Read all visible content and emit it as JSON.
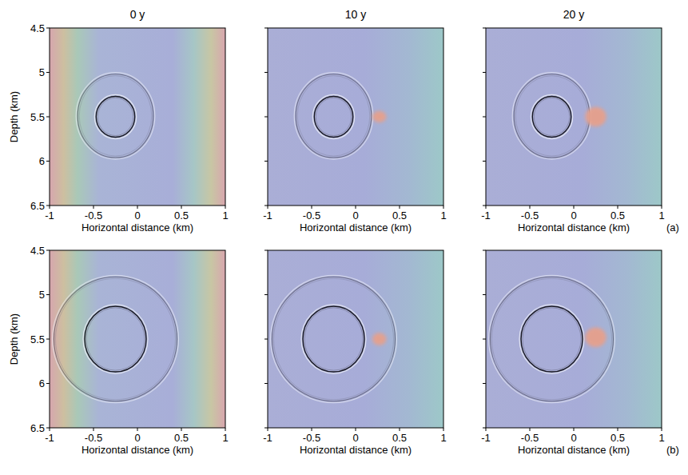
{
  "chart_data": [
    {
      "type": "image",
      "title": "0 y",
      "x_label": "Horizontal distance (km)",
      "y_label": "Depth (km)",
      "xlim": [
        -1,
        1
      ],
      "ylim": [
        4.5,
        6.5
      ],
      "xticks": [
        -1,
        -0.5,
        0,
        0.5,
        1
      ],
      "yticks": [
        4.5,
        5,
        5.5,
        6,
        6.5
      ],
      "reflectors": [
        {
          "cx": -0.25,
          "cy": 5.5,
          "rx": 0.22,
          "ry": 0.23
        },
        {
          "cx": -0.25,
          "cy": 5.49,
          "rx": 0.43,
          "ry": 0.47
        }
      ]
    },
    {
      "type": "image",
      "title": "10 y",
      "x_label": "Horizontal distance (km)",
      "tick_labels": "x",
      "xlim": [
        -1,
        1
      ],
      "ylim": [
        4.5,
        6.5
      ],
      "xticks": [
        -1,
        -0.5,
        0,
        0.5,
        1
      ],
      "yticks": [
        4.5,
        5,
        5.5,
        6,
        6.5
      ],
      "reflectors": [
        {
          "cx": -0.25,
          "cy": 5.5,
          "rx": 0.22,
          "ry": 0.23
        },
        {
          "cx": -0.25,
          "cy": 5.49,
          "rx": 0.43,
          "ry": 0.47
        }
      ],
      "plume": {
        "cx": 0.27,
        "cy": 5.5,
        "rx": 0.08,
        "ry": 0.065
      }
    },
    {
      "type": "image",
      "title": "20 y",
      "x_label": "Horizontal distance (km)",
      "tick_labels": "x",
      "panel_label": "(a)",
      "xlim": [
        -1,
        1
      ],
      "ylim": [
        4.5,
        6.5
      ],
      "xticks": [
        -1,
        -0.5,
        0,
        0.5,
        1
      ],
      "yticks": [
        4.5,
        5,
        5.5,
        6,
        6.5
      ],
      "reflectors": [
        {
          "cx": -0.25,
          "cy": 5.5,
          "rx": 0.22,
          "ry": 0.23
        },
        {
          "cx": -0.25,
          "cy": 5.49,
          "rx": 0.43,
          "ry": 0.47
        }
      ],
      "plume": {
        "cx": 0.25,
        "cy": 5.5,
        "rx": 0.12,
        "ry": 0.11
      }
    },
    {
      "type": "image",
      "x_label": "Horizontal distance (km)",
      "y_label": "Depth (km)",
      "xlim": [
        -1,
        1
      ],
      "ylim": [
        4.5,
        6.5
      ],
      "xticks": [
        -1,
        -0.5,
        0,
        0.5,
        1
      ],
      "yticks": [
        4.5,
        5,
        5.5,
        6,
        6.5
      ],
      "reflectors": [
        {
          "cx": -0.25,
          "cy": 5.5,
          "rx": 0.35,
          "ry": 0.37
        },
        {
          "cx": -0.25,
          "cy": 5.5,
          "rx": 0.7,
          "ry": 0.7
        }
      ]
    },
    {
      "type": "image",
      "x_label": "Horizontal distance (km)",
      "tick_labels": "x",
      "xlim": [
        -1,
        1
      ],
      "ylim": [
        4.5,
        6.5
      ],
      "xticks": [
        -1,
        -0.5,
        0,
        0.5,
        1
      ],
      "yticks": [
        4.5,
        5,
        5.5,
        6,
        6.5
      ],
      "reflectors": [
        {
          "cx": -0.25,
          "cy": 5.5,
          "rx": 0.35,
          "ry": 0.37
        },
        {
          "cx": -0.25,
          "cy": 5.5,
          "rx": 0.7,
          "ry": 0.7
        }
      ],
      "plume": {
        "cx": 0.27,
        "cy": 5.5,
        "rx": 0.08,
        "ry": 0.07
      }
    },
    {
      "type": "image",
      "x_label": "Horizontal distance (km)",
      "tick_labels": "x",
      "panel_label": "(b)",
      "xlim": [
        -1,
        1
      ],
      "ylim": [
        4.5,
        6.5
      ],
      "xticks": [
        -1,
        -0.5,
        0,
        0.5,
        1
      ],
      "yticks": [
        4.5,
        5,
        5.5,
        6,
        6.5
      ],
      "reflectors": [
        {
          "cx": -0.25,
          "cy": 5.5,
          "rx": 0.35,
          "ry": 0.37
        },
        {
          "cx": -0.25,
          "cy": 5.5,
          "rx": 0.7,
          "ry": 0.7
        }
      ],
      "plume": {
        "cx": 0.25,
        "cy": 5.48,
        "rx": 0.12,
        "ry": 0.11
      }
    }
  ]
}
